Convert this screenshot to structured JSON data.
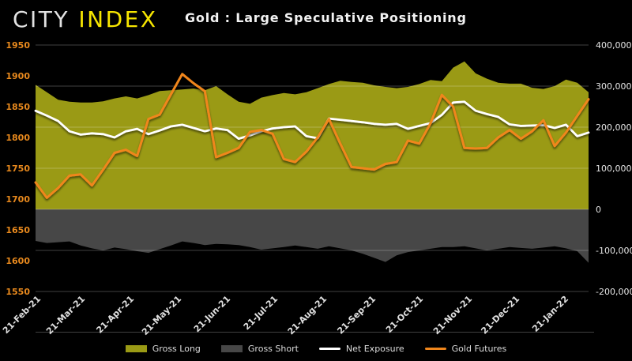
{
  "header": {
    "logo_part1": "CITY",
    "logo_part2": "INDEX",
    "title": "Gold : Large Speculative Positioning"
  },
  "colors": {
    "background": "#000000",
    "logo_city": "#e2e2e2",
    "logo_index": "#f6e500",
    "title_text": "#f2f2f2",
    "gross_long": "#9a9a15",
    "gross_short": "#474747",
    "net_exposure": "#ffffff",
    "gold_futures": "#f0861c",
    "left_axis_labels": "#e8891d",
    "right_axis_labels": "#e6e6e6",
    "x_axis_labels": "#e0e0e0",
    "gridline": "rgba(255,255,255,0.25)"
  },
  "chart_data": {
    "type": "area",
    "subtype": "combo area + line, dual y-axis, weekly data",
    "title": "Gold : Large Speculative Positioning",
    "grid": "horizontal gridlines at right-axis intervals",
    "legend_position": "bottom-center",
    "x_tick_labels": [
      "21-Feb-21",
      "21-Mar-21",
      "21-Apr-21",
      "21-May-21",
      "21-Jun-21",
      "21-Jul-21",
      "21-Aug-21",
      "21-Sep-21",
      "21-Oct-21",
      "21-Nov-21",
      "21-Dec-21",
      "21-Jan-22"
    ],
    "x_tick_day_offsets": [
      0,
      28,
      59,
      89,
      120,
      150,
      181,
      212,
      242,
      273,
      303,
      334
    ],
    "x_total_days": 350,
    "left_axis": {
      "applies_to": "Gold Futures price",
      "min": 1550,
      "max": 1950,
      "tick_values": [
        1950,
        1900,
        1850,
        1800,
        1750,
        1700,
        1650,
        1600,
        1550
      ],
      "tick_labels": [
        "1950",
        "1900",
        "1850",
        "1800",
        "1750",
        "1700",
        "1650",
        "1600",
        "1550"
      ]
    },
    "right_axis": {
      "applies_to": "Speculative positioning (contracts)",
      "min": -200000,
      "max": 400000,
      "tick_values": [
        400000,
        300000,
        200000,
        100000,
        0,
        -100000,
        -200000
      ],
      "tick_labels": [
        "400,000",
        "300,000",
        "200,000",
        "100,000",
        "0",
        "-100,000",
        "-200,000"
      ]
    },
    "series": [
      {
        "name": "Gross Long",
        "type": "area",
        "axis": "right",
        "color": "#9a9a15",
        "values": [
          303000,
          285000,
          267000,
          262000,
          260000,
          260000,
          263000,
          270000,
          275000,
          270000,
          278000,
          288000,
          290000,
          292000,
          294000,
          290000,
          300000,
          280000,
          262000,
          257000,
          272000,
          278000,
          283000,
          280000,
          285000,
          295000,
          305000,
          313000,
          310000,
          308000,
          302000,
          298000,
          295000,
          298000,
          305000,
          315000,
          312000,
          345000,
          360000,
          331000,
          318000,
          308000,
          306000,
          306000,
          296000,
          293000,
          300000,
          316000,
          308000,
          285000
        ]
      },
      {
        "name": "Gross Short",
        "type": "area",
        "axis": "right",
        "color": "#474747",
        "values": [
          -77000,
          -82000,
          -80000,
          -78000,
          -88000,
          -95000,
          -100000,
          -93000,
          -97000,
          -102000,
          -106000,
          -97000,
          -88000,
          -78000,
          -82000,
          -87000,
          -84000,
          -85000,
          -87000,
          -92000,
          -98000,
          -95000,
          -92000,
          -88000,
          -92000,
          -96000,
          -90000,
          -95000,
          -100000,
          -108000,
          -118000,
          -128000,
          -112000,
          -104000,
          -100000,
          -96000,
          -92000,
          -92000,
          -90000,
          -95000,
          -100000,
          -96000,
          -92000,
          -94000,
          -96000,
          -93000,
          -90000,
          -95000,
          -102000,
          -130000
        ]
      },
      {
        "name": "Net Exposure",
        "type": "line",
        "axis": "right",
        "color": "#ffffff",
        "values": [
          240000,
          228000,
          215000,
          190000,
          182000,
          185000,
          183000,
          175000,
          190000,
          196000,
          183000,
          192000,
          202000,
          206000,
          198000,
          190000,
          197000,
          193000,
          172000,
          180000,
          190000,
          197000,
          200000,
          202000,
          178000,
          173000,
          221000,
          218000,
          215000,
          212000,
          208000,
          206000,
          208000,
          196000,
          203000,
          210000,
          230000,
          260000,
          262000,
          240000,
          232000,
          225000,
          207000,
          203000,
          204000,
          205000,
          198000,
          206000,
          178000,
          187000
        ]
      },
      {
        "name": "Gold Futures",
        "type": "line",
        "axis": "left",
        "color": "#f0861c",
        "values": [
          1727,
          1702,
          1718,
          1738,
          1740,
          1722,
          1748,
          1775,
          1780,
          1770,
          1830,
          1837,
          1870,
          1903,
          1888,
          1875,
          1768,
          1775,
          1783,
          1809,
          1812,
          1806,
          1765,
          1760,
          1777,
          1800,
          1830,
          1790,
          1752,
          1750,
          1748,
          1757,
          1760,
          1795,
          1790,
          1823,
          1869,
          1850,
          1783,
          1782,
          1783,
          1800,
          1812,
          1798,
          1810,
          1828,
          1786,
          1808,
          1835,
          1862
        ]
      }
    ]
  }
}
